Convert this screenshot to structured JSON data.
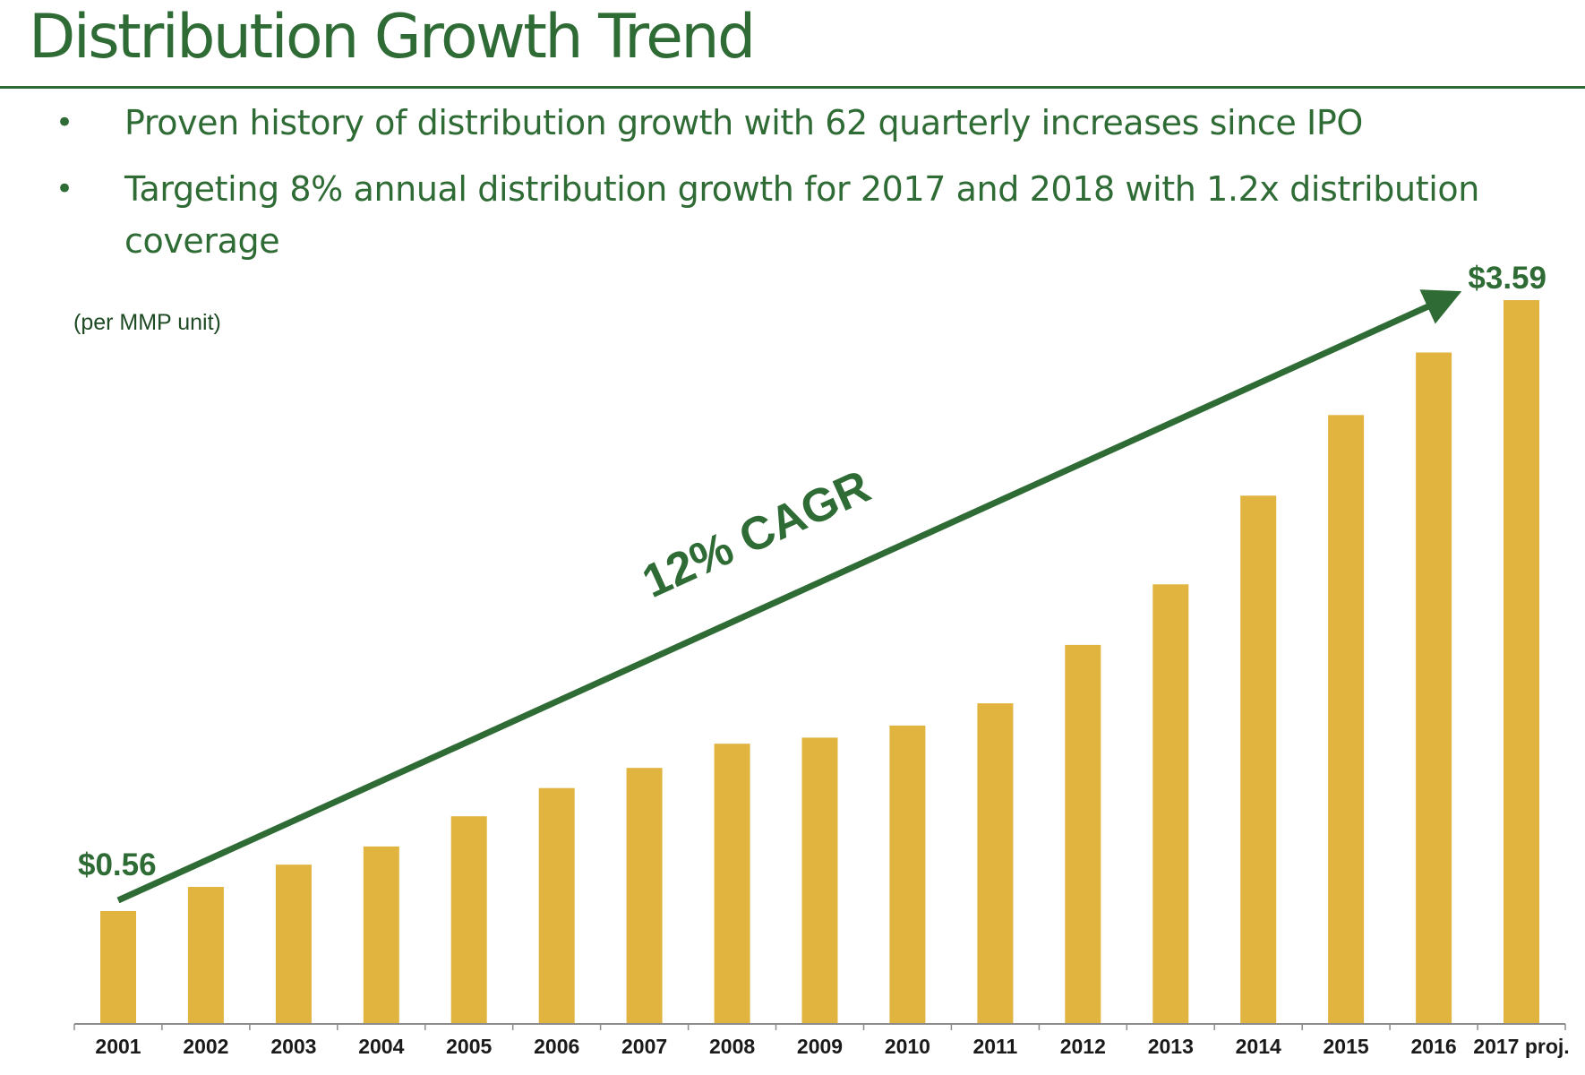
{
  "title": "Distribution Growth Trend",
  "bullets": [
    "Proven history of distribution growth with 62 quarterly increases since IPO",
    "Targeting 8% annual distribution growth for 2017 and 2018 with 1.2x distribution coverage"
  ],
  "bullet_glyph": "•",
  "colors": {
    "green": "#2f6b35",
    "bar": "#e0b43f"
  },
  "chart_data": {
    "type": "bar",
    "unit_note": "(per MMP unit)",
    "categories": [
      "2001",
      "2002",
      "2003",
      "2004",
      "2005",
      "2006",
      "2007",
      "2008",
      "2009",
      "2010",
      "2011",
      "2012",
      "2013",
      "2014",
      "2015",
      "2016",
      "2017 proj."
    ],
    "values": [
      0.56,
      0.68,
      0.79,
      0.88,
      1.03,
      1.17,
      1.27,
      1.39,
      1.42,
      1.48,
      1.59,
      1.88,
      2.18,
      2.62,
      3.02,
      3.33,
      3.59
    ],
    "ylim": [
      0,
      3.59
    ],
    "data_labels": [
      {
        "index": 0,
        "text": "$0.56"
      },
      {
        "index": 16,
        "text": "$3.59"
      }
    ],
    "annotation": "12% CAGR",
    "grid": false,
    "legend": "none"
  }
}
